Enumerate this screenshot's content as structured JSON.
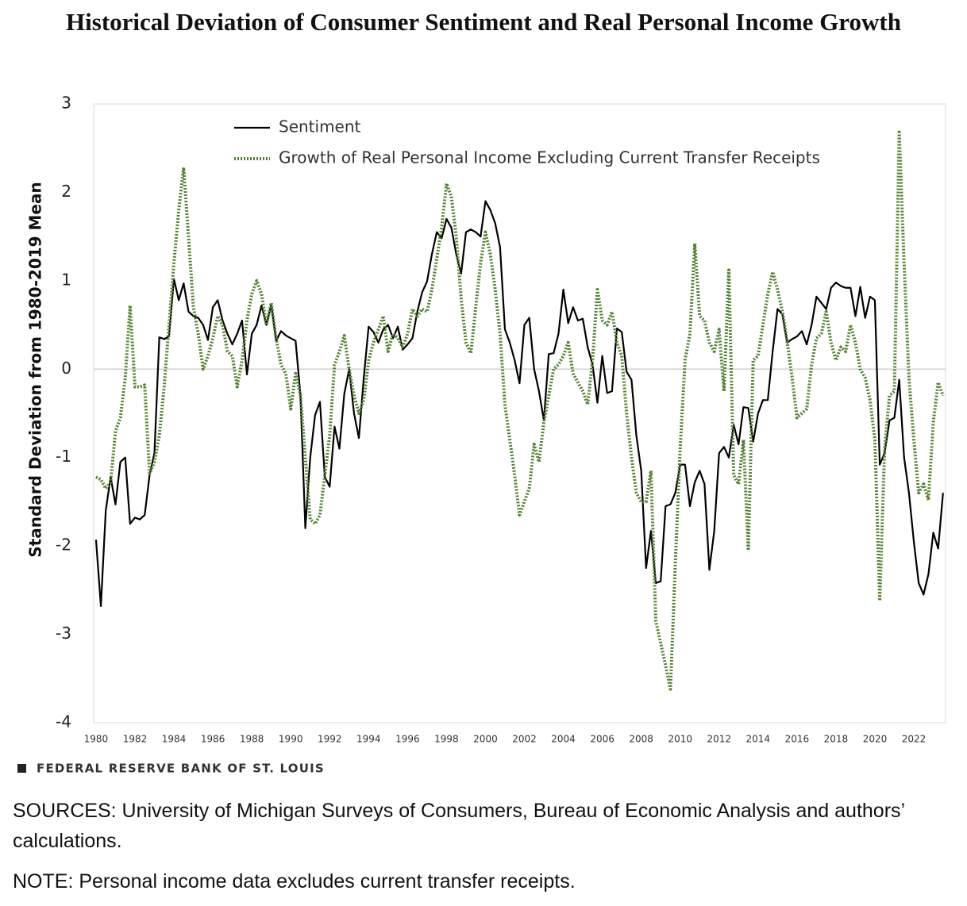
{
  "chart_data": {
    "type": "line",
    "title": "Historical Deviation of Consumer Sentiment and Real Personal Income Growth",
    "y_label": "Standard Deviation from 1980-2019 Mean",
    "source_brand": "FEDERAL RESERVE BANK OF ST. LOUIS",
    "sources": "SOURCES: University of Michigan Surveys of Consumers, Bureau of Economic Analysis and authors’ calculations.",
    "note": "NOTE: Personal income data excludes current transfer receipts.",
    "legend": "upper left",
    "grid": false,
    "xlim": [
      1979.88,
      2023.63
    ],
    "ylim": [
      -4,
      3
    ],
    "xticks": [
      1980,
      1982,
      1984,
      1986,
      1988,
      1990,
      1992,
      1994,
      1996,
      1998,
      2000,
      2002,
      2004,
      2006,
      2008,
      2010,
      2012,
      2014,
      2016,
      2018,
      2020,
      2022
    ],
    "yticks": [
      3,
      2,
      1,
      0,
      -1,
      -2,
      -3,
      -4
    ],
    "x": [
      1980,
      1980.25,
      1980.5,
      1980.75,
      1981,
      1981.25,
      1981.5,
      1981.75,
      1982,
      1982.25,
      1982.5,
      1982.75,
      1983,
      1983.25,
      1983.5,
      1983.75,
      1984,
      1984.25,
      1984.5,
      1984.75,
      1985,
      1985.25,
      1985.5,
      1985.75,
      1986,
      1986.25,
      1986.5,
      1986.75,
      1987,
      1987.25,
      1987.5,
      1987.75,
      1988,
      1988.25,
      1988.5,
      1988.75,
      1989,
      1989.25,
      1989.5,
      1989.75,
      1990,
      1990.25,
      1990.5,
      1990.75,
      1991,
      1991.25,
      1991.5,
      1991.75,
      1992,
      1992.25,
      1992.5,
      1992.75,
      1993,
      1993.25,
      1993.5,
      1993.75,
      1994,
      1994.25,
      1994.5,
      1994.75,
      1995,
      1995.25,
      1995.5,
      1995.75,
      1996,
      1996.25,
      1996.5,
      1996.75,
      1997,
      1997.25,
      1997.5,
      1997.75,
      1998,
      1998.25,
      1998.5,
      1998.75,
      1999,
      1999.25,
      1999.5,
      1999.75,
      2000,
      2000.25,
      2000.5,
      2000.75,
      2001,
      2001.25,
      2001.5,
      2001.75,
      2002,
      2002.25,
      2002.5,
      2002.75,
      2003,
      2003.25,
      2003.5,
      2003.75,
      2004,
      2004.25,
      2004.5,
      2004.75,
      2005,
      2005.25,
      2005.5,
      2005.75,
      2006,
      2006.25,
      2006.5,
      2006.75,
      2007,
      2007.25,
      2007.5,
      2007.75,
      2008,
      2008.25,
      2008.5,
      2008.75,
      2009,
      2009.25,
      2009.5,
      2009.75,
      2010,
      2010.25,
      2010.5,
      2010.75,
      2011,
      2011.25,
      2011.5,
      2011.75,
      2012,
      2012.25,
      2012.5,
      2012.75,
      2013,
      2013.25,
      2013.5,
      2013.75,
      2014,
      2014.25,
      2014.5,
      2014.75,
      2015,
      2015.25,
      2015.5,
      2015.75,
      2016,
      2016.25,
      2016.5,
      2016.75,
      2017,
      2017.25,
      2017.5,
      2017.75,
      2018,
      2018.25,
      2018.5,
      2018.75,
      2019,
      2019.25,
      2019.5,
      2019.75,
      2020,
      2020.25,
      2020.5,
      2020.75,
      2021,
      2021.25,
      2021.5,
      2021.75,
      2022,
      2022.25,
      2022.5,
      2022.75,
      2023,
      2023.25,
      2023.5
    ],
    "series": [
      {
        "name": "Sentiment",
        "color": "#000000",
        "style": "solid",
        "values": [
          -1.93,
          -2.68,
          -1.6,
          -1.22,
          -1.53,
          -1.05,
          -1.0,
          -1.75,
          -1.68,
          -1.7,
          -1.65,
          -1.2,
          -0.95,
          0.36,
          0.34,
          0.37,
          1.02,
          0.78,
          0.97,
          0.65,
          0.6,
          0.58,
          0.5,
          0.33,
          0.7,
          0.78,
          0.55,
          0.4,
          0.28,
          0.4,
          0.55,
          -0.06,
          0.4,
          0.5,
          0.72,
          0.5,
          0.73,
          0.32,
          0.43,
          0.38,
          0.35,
          0.32,
          -0.3,
          -1.8,
          -1.0,
          -0.52,
          -0.37,
          -1.22,
          -1.33,
          -0.65,
          -0.9,
          -0.28,
          0.0,
          -0.5,
          -0.78,
          -0.1,
          0.48,
          0.42,
          0.3,
          0.45,
          0.5,
          0.35,
          0.48,
          0.22,
          0.28,
          0.35,
          0.65,
          0.87,
          0.99,
          1.3,
          1.55,
          1.48,
          1.7,
          1.6,
          1.3,
          1.08,
          1.55,
          1.58,
          1.55,
          1.5,
          1.9,
          1.8,
          1.65,
          1.38,
          0.45,
          0.3,
          0.1,
          -0.16,
          0.5,
          0.58,
          0.0,
          -0.25,
          -0.58,
          0.17,
          0.18,
          0.4,
          0.9,
          0.52,
          0.7,
          0.55,
          0.57,
          0.25,
          0.05,
          -0.38,
          0.15,
          -0.27,
          -0.25,
          0.46,
          0.42,
          -0.03,
          -0.12,
          -0.75,
          -1.15,
          -2.25,
          -1.83,
          -2.42,
          -2.4,
          -1.55,
          -1.53,
          -1.4,
          -1.08,
          -1.08,
          -1.55,
          -1.28,
          -1.15,
          -1.3,
          -2.27,
          -1.83,
          -0.95,
          -0.88,
          -1.0,
          -0.63,
          -0.85,
          -0.43,
          -0.44,
          -0.82,
          -0.5,
          -0.35,
          -0.35,
          0.2,
          0.68,
          0.62,
          0.3,
          0.34,
          0.37,
          0.43,
          0.28,
          0.5,
          0.82,
          0.75,
          0.68,
          0.92,
          0.98,
          0.94,
          0.92,
          0.92,
          0.6,
          0.93,
          0.58,
          0.82,
          0.78,
          -1.08,
          -0.95,
          -0.58,
          -0.55,
          -0.12,
          -1.0,
          -1.4,
          -1.95,
          -2.42,
          -2.55,
          -2.32,
          -1.85,
          -2.03,
          -1.4
        ]
      },
      {
        "name": "Growth of Real Personal Income Excluding Current Transfer Receipts",
        "color": "#548235",
        "style": "dotted",
        "values": [
          -1.22,
          -1.25,
          -1.35,
          -1.28,
          -0.7,
          -0.55,
          -0.1,
          0.72,
          -0.2,
          -0.2,
          -0.18,
          -1.18,
          -1.05,
          -0.75,
          -0.2,
          0.5,
          1.2,
          1.8,
          2.28,
          1.5,
          0.7,
          0.4,
          0.0,
          0.15,
          0.35,
          0.6,
          0.5,
          0.2,
          0.15,
          -0.2,
          0.1,
          0.55,
          0.85,
          1.0,
          0.85,
          0.5,
          0.75,
          0.35,
          0.05,
          -0.05,
          -0.45,
          -0.05,
          -0.3,
          -1.0,
          -1.7,
          -1.75,
          -1.65,
          -1.2,
          -0.75,
          0.05,
          0.2,
          0.38,
          0.0,
          -0.3,
          -0.5,
          -0.35,
          0.1,
          0.3,
          0.45,
          0.6,
          0.2,
          0.4,
          0.35,
          0.25,
          0.4,
          0.68,
          0.6,
          0.68,
          0.65,
          0.9,
          1.25,
          1.6,
          2.1,
          1.95,
          1.5,
          0.8,
          0.3,
          0.18,
          0.7,
          1.2,
          1.55,
          1.3,
          0.9,
          0.4,
          -0.4,
          -0.8,
          -1.2,
          -1.65,
          -1.5,
          -1.35,
          -0.85,
          -1.05,
          -0.6,
          -0.3,
          0.0,
          0.05,
          0.15,
          0.3,
          -0.05,
          -0.15,
          -0.25,
          -0.4,
          0.1,
          0.9,
          0.55,
          0.5,
          0.65,
          0.3,
          0.15,
          -0.5,
          -1.0,
          -1.4,
          -1.5,
          -1.5,
          -1.15,
          -2.85,
          -3.1,
          -3.35,
          -3.62,
          -2.2,
          -0.9,
          0.1,
          0.4,
          1.42,
          0.6,
          0.55,
          0.3,
          0.2,
          0.45,
          -0.25,
          1.12,
          -1.2,
          -1.3,
          -0.8,
          -2.05,
          0.1,
          0.15,
          0.5,
          0.85,
          1.1,
          0.9,
          0.65,
          0.3,
          -0.1,
          -0.55,
          -0.5,
          -0.45,
          0.05,
          0.35,
          0.4,
          0.65,
          0.3,
          0.1,
          0.25,
          0.2,
          0.5,
          0.3,
          0.0,
          -0.1,
          -0.35,
          -0.8,
          -2.62,
          -0.9,
          -0.3,
          -0.25,
          2.68,
          1.2,
          -0.1,
          -0.8,
          -1.4,
          -1.3,
          -1.48,
          -0.6,
          -0.15,
          -0.3
        ]
      }
    ]
  }
}
